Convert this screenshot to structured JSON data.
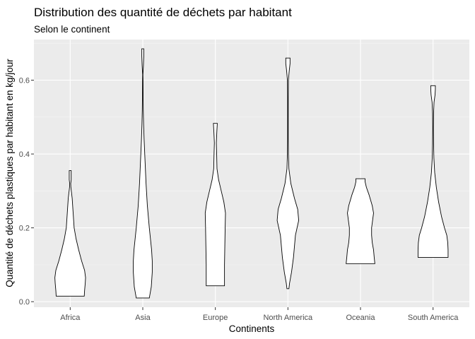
{
  "chart_data": {
    "type": "violin",
    "title": "Distribution des quantité de déchets par habitant",
    "subtitle": "Selon le continent",
    "xlabel": "Continents",
    "ylabel": "Quantité de déchets plastiques par habitant en kg/jour",
    "ylim": [
      -0.015,
      0.71
    ],
    "yticks": [
      0.0,
      0.2,
      0.4,
      0.6
    ],
    "ytick_labels": [
      "0.0",
      "0.2",
      "0.4",
      "0.6"
    ],
    "categories": [
      "Africa",
      "Asia",
      "Europe",
      "North America",
      "Oceania",
      "South America"
    ],
    "background": "#ebebeb",
    "grid": true,
    "legend": "none",
    "series": [
      {
        "category": "Africa",
        "min": 0.015,
        "max": 0.355,
        "profile": [
          [
            0.015,
            0.43
          ],
          [
            0.03,
            0.44
          ],
          [
            0.05,
            0.46
          ],
          [
            0.065,
            0.47
          ],
          [
            0.085,
            0.44
          ],
          [
            0.11,
            0.35
          ],
          [
            0.14,
            0.26
          ],
          [
            0.17,
            0.18
          ],
          [
            0.2,
            0.12
          ],
          [
            0.24,
            0.09
          ],
          [
            0.28,
            0.06
          ],
          [
            0.31,
            0.02
          ],
          [
            0.32,
            0.015
          ],
          [
            0.33,
            0.03
          ],
          [
            0.355,
            0.03
          ]
        ]
      },
      {
        "category": "Asia",
        "min": 0.01,
        "max": 0.685,
        "profile": [
          [
            0.01,
            0.2
          ],
          [
            0.04,
            0.26
          ],
          [
            0.08,
            0.29
          ],
          [
            0.11,
            0.29
          ],
          [
            0.14,
            0.27
          ],
          [
            0.2,
            0.2
          ],
          [
            0.26,
            0.14
          ],
          [
            0.32,
            0.1
          ],
          [
            0.38,
            0.07
          ],
          [
            0.44,
            0.04
          ],
          [
            0.48,
            0.025
          ],
          [
            0.52,
            0.015
          ],
          [
            0.56,
            0.01
          ],
          [
            0.6,
            0.008
          ],
          [
            0.615,
            0.005
          ],
          [
            0.64,
            0.02
          ],
          [
            0.665,
            0.03
          ],
          [
            0.685,
            0.03
          ]
        ]
      },
      {
        "category": "Europe",
        "min": 0.043,
        "max": 0.483,
        "profile": [
          [
            0.043,
            0.28
          ],
          [
            0.06,
            0.28
          ],
          [
            0.1,
            0.28
          ],
          [
            0.15,
            0.29
          ],
          [
            0.2,
            0.3
          ],
          [
            0.24,
            0.31
          ],
          [
            0.27,
            0.26
          ],
          [
            0.3,
            0.18
          ],
          [
            0.33,
            0.1
          ],
          [
            0.36,
            0.05
          ],
          [
            0.4,
            0.04
          ],
          [
            0.43,
            0.03
          ],
          [
            0.46,
            0.045
          ],
          [
            0.483,
            0.06
          ]
        ]
      },
      {
        "category": "North America",
        "min": 0.035,
        "max": 0.66,
        "profile": [
          [
            0.035,
            0.03
          ],
          [
            0.05,
            0.05
          ],
          [
            0.08,
            0.11
          ],
          [
            0.12,
            0.17
          ],
          [
            0.15,
            0.2
          ],
          [
            0.18,
            0.23
          ],
          [
            0.2,
            0.28
          ],
          [
            0.22,
            0.33
          ],
          [
            0.25,
            0.3
          ],
          [
            0.28,
            0.2
          ],
          [
            0.32,
            0.09
          ],
          [
            0.36,
            0.03
          ],
          [
            0.4,
            0.015
          ],
          [
            0.44,
            0.01
          ],
          [
            0.5,
            0.01
          ],
          [
            0.55,
            0.01
          ],
          [
            0.6,
            0.015
          ],
          [
            0.625,
            0.04
          ],
          [
            0.645,
            0.065
          ],
          [
            0.66,
            0.065
          ]
        ]
      },
      {
        "category": "Oceania",
        "min": 0.103,
        "max": 0.333,
        "profile": [
          [
            0.103,
            0.44
          ],
          [
            0.12,
            0.42
          ],
          [
            0.14,
            0.4
          ],
          [
            0.16,
            0.36
          ],
          [
            0.18,
            0.34
          ],
          [
            0.2,
            0.34
          ],
          [
            0.22,
            0.37
          ],
          [
            0.24,
            0.4
          ],
          [
            0.26,
            0.36
          ],
          [
            0.29,
            0.26
          ],
          [
            0.31,
            0.18
          ],
          [
            0.325,
            0.14
          ],
          [
            0.333,
            0.14
          ]
        ]
      },
      {
        "category": "South America",
        "min": 0.12,
        "max": 0.585,
        "profile": [
          [
            0.12,
            0.46
          ],
          [
            0.14,
            0.46
          ],
          [
            0.16,
            0.45
          ],
          [
            0.18,
            0.42
          ],
          [
            0.2,
            0.35
          ],
          [
            0.23,
            0.26
          ],
          [
            0.27,
            0.17
          ],
          [
            0.31,
            0.1
          ],
          [
            0.35,
            0.05
          ],
          [
            0.39,
            0.025
          ],
          [
            0.43,
            0.015
          ],
          [
            0.47,
            0.01
          ],
          [
            0.51,
            0.015
          ],
          [
            0.54,
            0.03
          ],
          [
            0.56,
            0.06
          ],
          [
            0.575,
            0.07
          ],
          [
            0.585,
            0.07
          ]
        ]
      }
    ]
  }
}
